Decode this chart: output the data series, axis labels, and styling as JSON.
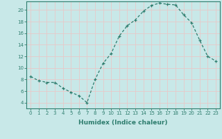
{
  "x": [
    0,
    1,
    2,
    3,
    4,
    5,
    6,
    7,
    8,
    9,
    10,
    11,
    12,
    13,
    14,
    15,
    16,
    17,
    18,
    19,
    20,
    21,
    22,
    23
  ],
  "y": [
    8.5,
    7.8,
    7.5,
    7.5,
    6.5,
    5.8,
    5.2,
    4.0,
    8.0,
    10.8,
    12.5,
    15.5,
    17.3,
    18.3,
    19.8,
    20.8,
    21.2,
    21.0,
    20.9,
    19.2,
    17.8,
    14.8,
    12.0,
    11.2
  ],
  "line_color": "#2e7d6e",
  "bg_color": "#c8e8e8",
  "grid_color": "#b8d8d8",
  "spine_color": "#2e7d6e",
  "tick_color": "#2e7d6e",
  "xlabel": "Humidex (Indice chaleur)",
  "xlim": [
    -0.5,
    23.5
  ],
  "ylim": [
    3.0,
    21.5
  ],
  "yticks": [
    4,
    6,
    8,
    10,
    12,
    14,
    16,
    18,
    20
  ],
  "xticks": [
    0,
    1,
    2,
    3,
    4,
    5,
    6,
    7,
    8,
    9,
    10,
    11,
    12,
    13,
    14,
    15,
    16,
    17,
    18,
    19,
    20,
    21,
    22,
    23
  ],
  "tick_fontsize": 5.0,
  "xlabel_fontsize": 6.5
}
